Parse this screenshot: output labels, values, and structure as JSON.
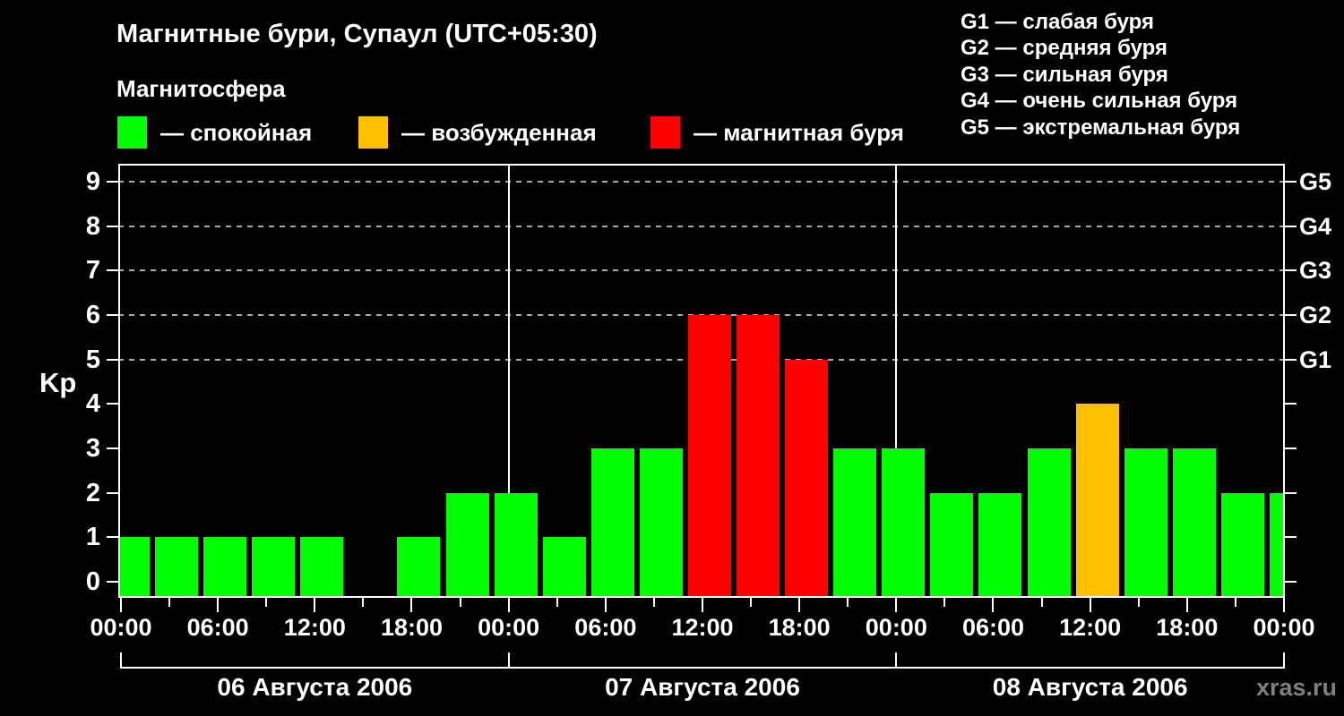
{
  "header": {
    "title": "Магнитные бури, Супаул (UTC+05:30)",
    "subtitle": "Магнитосфера",
    "legend": [
      {
        "name": "quiet",
        "color": "#00ff00",
        "label": "— спокойная"
      },
      {
        "name": "active",
        "color": "#ffc000",
        "label": "— возбужденная"
      },
      {
        "name": "storm",
        "color": "#ff0000",
        "label": "— магнитная буря"
      }
    ],
    "g_scale_legend": [
      "G1 — слабая буря",
      "G2 — средняя буря",
      "G3 — сильная буря",
      "G4 — очень сильная буря",
      "G5 — экстремальная буря"
    ]
  },
  "chart_data": {
    "type": "bar",
    "title": "Магнитные бури, Супаул (UTC+05:30)",
    "ylabel": "Kp",
    "ylim": [
      0,
      9.6
    ],
    "y_ticks": [
      0,
      1,
      2,
      3,
      4,
      5,
      6,
      7,
      8,
      9
    ],
    "grid_levels": [
      5,
      6,
      7,
      8,
      9
    ],
    "right_axis_labels": [
      {
        "level": 5,
        "label": "G1"
      },
      {
        "level": 6,
        "label": "G2"
      },
      {
        "level": 7,
        "label": "G3"
      },
      {
        "level": 8,
        "label": "G4"
      },
      {
        "level": 9,
        "label": "G5"
      }
    ],
    "x_tick_labels": [
      "00:00",
      "06:00",
      "12:00",
      "18:00",
      "00:00",
      "06:00",
      "12:00",
      "18:00",
      "00:00",
      "06:00",
      "12:00",
      "18:00",
      "00:00"
    ],
    "bar_interval_hours": 3,
    "days": [
      {
        "date": "06 Августа 2006",
        "kp": [
          1,
          1,
          1,
          1,
          1,
          0,
          1,
          2
        ]
      },
      {
        "date": "07 Августа 2006",
        "kp": [
          2,
          1,
          3,
          3,
          6,
          6,
          5,
          3
        ]
      },
      {
        "date": "08 Августа 2006",
        "kp": [
          3,
          2,
          2,
          3,
          4,
          3,
          3,
          2
        ]
      }
    ],
    "next_day_partial_kp": [
      2
    ],
    "color_thresholds": {
      "quiet_max": 3,
      "active_max": 4
    },
    "colors": {
      "quiet": "#00ff00",
      "active": "#ffc000",
      "storm": "#ff0000"
    },
    "grid_color": "#aaaaaa",
    "axis_color": "#ffffff"
  },
  "footer": {
    "watermark": "xras.ru"
  }
}
